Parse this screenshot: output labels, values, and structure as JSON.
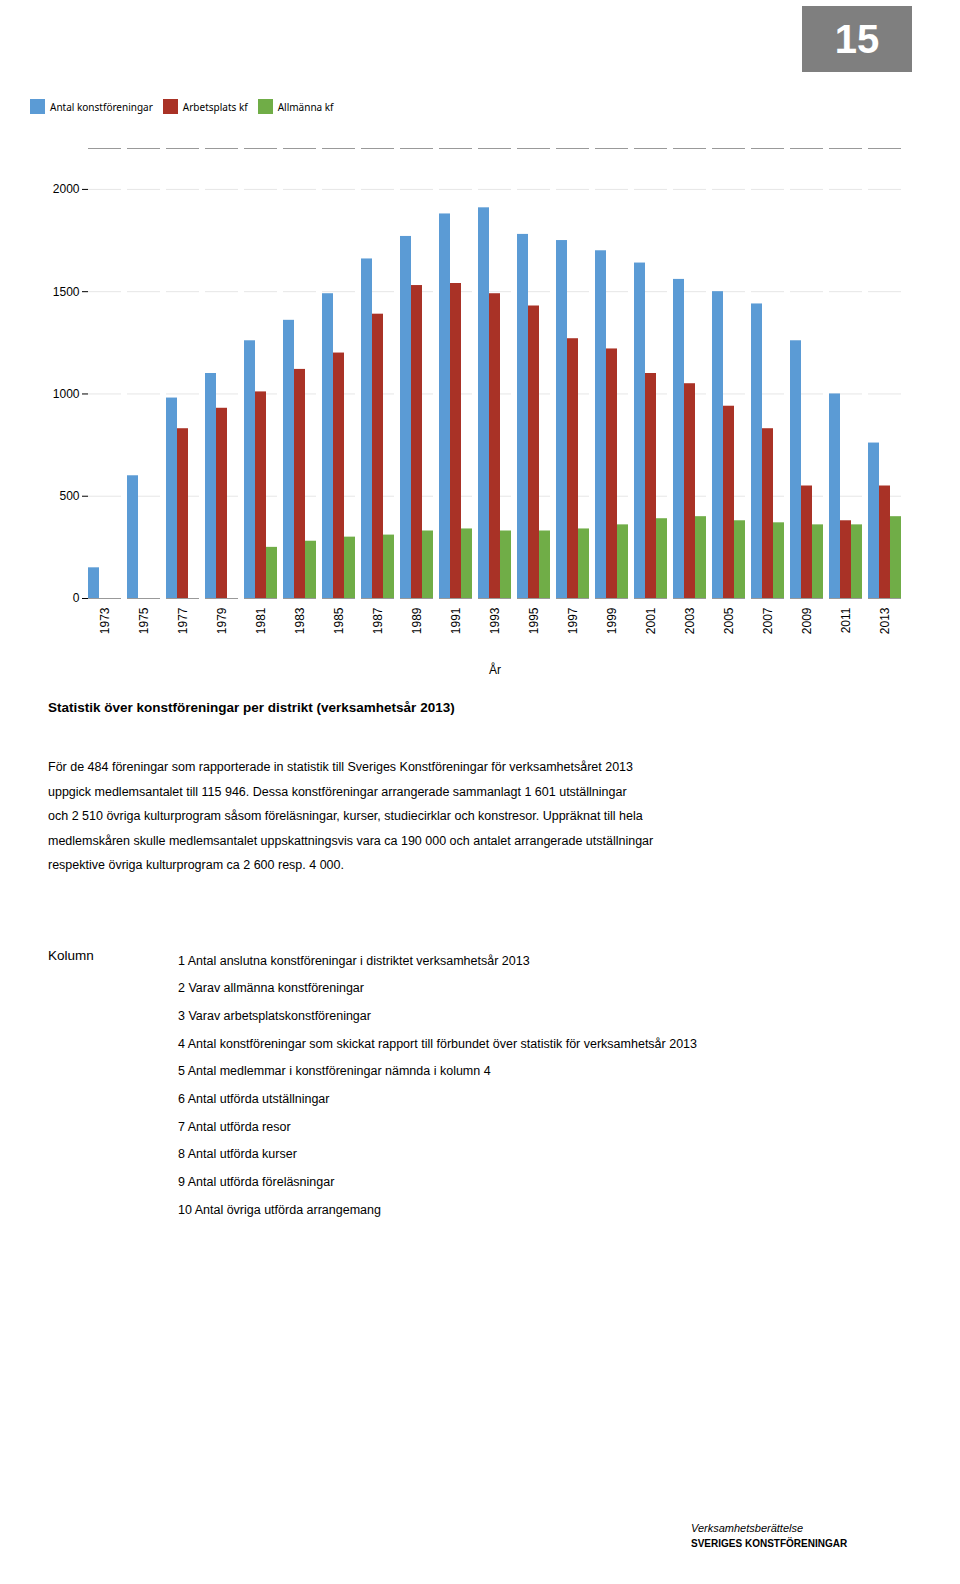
{
  "chart_data": {
    "type": "bar",
    "xlabel": "År",
    "categories": [
      "1973",
      "1975",
      "1977",
      "1979",
      "1981",
      "1983",
      "1985",
      "1987",
      "1989",
      "1991",
      "1993",
      "1995",
      "1997",
      "1999",
      "2001",
      "2003",
      "2005",
      "2007",
      "2009",
      "2011",
      "2013"
    ],
    "series": [
      {
        "name": "Antal konstföreningar",
        "color": "#5B9BD5",
        "values": [
          150,
          600,
          980,
          1100,
          1260,
          1360,
          1490,
          1660,
          1770,
          1880,
          1910,
          1780,
          1750,
          1700,
          1640,
          1560,
          1500,
          1440,
          1260,
          1000,
          760
        ]
      },
      {
        "name": "Arbetsplats kf",
        "color": "#A93226",
        "values": [
          0,
          0,
          830,
          930,
          1010,
          1120,
          1200,
          1390,
          1530,
          1540,
          1490,
          1430,
          1270,
          1220,
          1100,
          1050,
          940,
          830,
          550,
          380,
          550
        ]
      },
      {
        "name": "Allmänna kf",
        "color": "#70AD47",
        "values": [
          0,
          0,
          0,
          0,
          250,
          280,
          300,
          310,
          330,
          340,
          330,
          330,
          340,
          360,
          390,
          400,
          380,
          370,
          360,
          360,
          400
        ]
      }
    ],
    "ylim": [
      0,
      2200
    ],
    "yticks": [
      0,
      500,
      1000,
      1500,
      2000
    ],
    "grid": true,
    "legend": "top",
    "annotations": [
      "15",
      "Statistik över konstföreningar per distrikt (verksamhetsår 2013)",
      "För de 484 föreningar som rapporterade in statistik till Sveriges Konstföreningar för verksamhetsåret 2013",
      "uppgick medlemsantalet till 115 946. Dessa konstföreningar arrangerade sammanlagt 1 601 utställningar",
      "och 2 510 övriga kulturprogram såsom föreläsningar, kurser, studiecirklar och konstresor. Uppräknat till hela",
      "medlemskåren skulle medlemsantalet uppskattningsvis vara ca 190 000 och antalet arrangerade utställningar",
      "respektive övriga kulturprogram ca 2 600 resp. 4 000.",
      "Kolumn",
      "1 Antal anslutna konstföreningar i distriktet verksamhetsår 2013",
      "2 Varav allmänna konstföreningar",
      "3 Varav arbetsplatskonstföreningar",
      "4 Antal konstföreningar som skickat rapport till förbundet över statistik för verksamhetsår 2013",
      "5 Antal medlemmar i konstföreningar nämnda i kolumn 4",
      "6 Antal utförda utställningar",
      "7 Antal utförda resor",
      "8 Antal utförda kurser",
      "9 Antal utförda föreläsningar",
      "10 Antal övriga utförda arrangemang",
      "Verksamhetsberättelse",
      "SVERIGES KONSTFÖRENINGAR"
    ]
  }
}
